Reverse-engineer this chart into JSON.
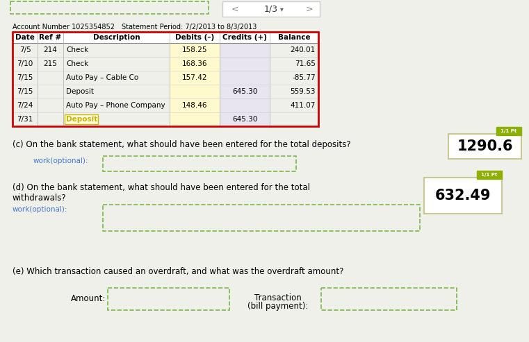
{
  "bg_color": "#f0f0eb",
  "nav_text": "1/3",
  "account_number": "Account Number 1025354852",
  "statement_period": "Statement Period: 7/2/2013 to 8/3/2013",
  "table_headers": [
    "Date",
    "Ref #",
    "Description",
    "Debits (–)",
    "Credits (+)",
    "Balance"
  ],
  "table_rows": [
    [
      "7/5",
      "214",
      "Check",
      "158.25",
      "",
      "240.01"
    ],
    [
      "7/10",
      "215",
      "Check",
      "168.36",
      "",
      "71.65"
    ],
    [
      "7/15",
      "",
      "Auto Pay – Cable Co",
      "157.42",
      "",
      "-85.77"
    ],
    [
      "7/15",
      "",
      "Deposit",
      "",
      "645.30",
      "559.53"
    ],
    [
      "7/24",
      "",
      "Auto Pay – Phone Company",
      "148.46",
      "",
      "411.07"
    ],
    [
      "7/31",
      "",
      "Deposit",
      "",
      "645.30",
      ""
    ]
  ],
  "debit_col_color": "#fffacd",
  "credit_col_color": "#e8e4f0",
  "deposit_label_color": "#c8b400",
  "deposit_label_bg": "#fffde0",
  "section_c_text": "(c) On the bank statement, what should have been entered for the total deposits?",
  "section_c_answer": "1290.6",
  "section_d_text_line1": "(d) On the bank statement, what should have been entered for the total",
  "section_d_text_line2": "withdrawals?",
  "section_d_answer": "632.49",
  "section_e_text": "(e) Which transaction caused an overdraft, and what was the overdraft amount?",
  "work_optional_text": "work(optional):",
  "amount_label": "Amount:",
  "transaction_label_line1": "Transaction",
  "transaction_label_line2": "(bill payment):",
  "answer_box_color": "#ffffff",
  "answer_border_color": "#c8c890",
  "dashed_box_color": "#7ab648",
  "badge_color": "#8db000",
  "badge_text_color": "#ffffff",
  "badge_text": "1/1 Pt",
  "table_border_color": "#cc0000",
  "header_bg_color": "#ffffff",
  "nav_bg_color": "#ffffff",
  "work_optional_color": "#4477cc"
}
